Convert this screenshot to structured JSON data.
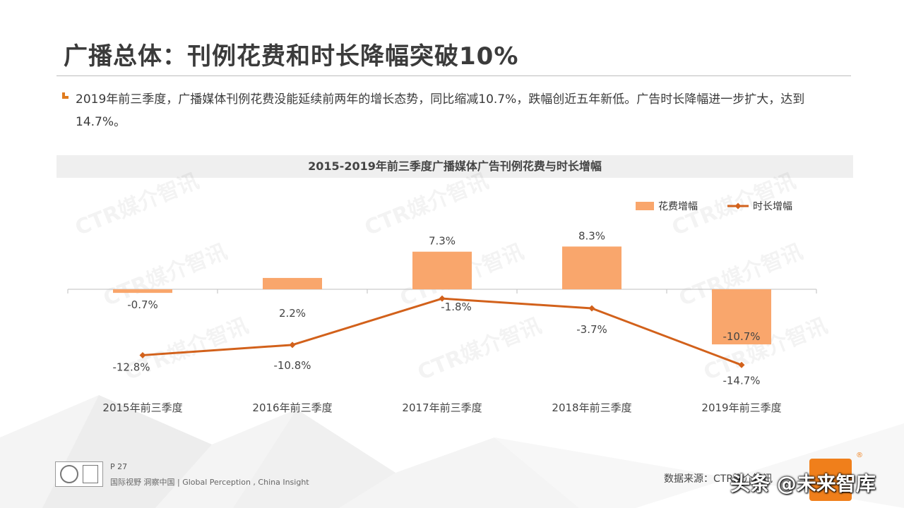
{
  "slide": {
    "title": "广播总体：刊例花费和时长降幅突破10%",
    "bullet": "2019年前三季度，广播媒体刊例花费没能延续前两年的增长态势，同比缩减10.7%，跌幅创近五年新低。广告时长降幅进一步扩大，达到14.7%。",
    "watermark": "CTR媒介智讯",
    "page_number": "P 27",
    "footer_tagline": "国际视野  洞察中国 | Global Perception , China Insight",
    "source": "数据来源：CTR媒介智讯",
    "brand_overlay": "头条 @未来智库",
    "registered_mark": "®"
  },
  "chart_data": {
    "type": "bar+line",
    "title": "2015-2019年前三季度广播媒体广告刊例花费与时长增幅",
    "categories": [
      "2015年前三季度",
      "2016年前三季度",
      "2017年前三季度",
      "2018年前三季度",
      "2019年前三季度"
    ],
    "series": [
      {
        "name": "花费增幅",
        "type": "bar",
        "color": "#f9a66c",
        "values": [
          -0.7,
          2.2,
          7.3,
          8.3,
          -10.7
        ],
        "labels": [
          "-0.7%",
          "2.2%",
          "7.3%",
          "8.3%",
          "-10.7%"
        ]
      },
      {
        "name": "时长增幅",
        "type": "line",
        "color": "#d2611b",
        "values": [
          -12.8,
          -10.8,
          -1.8,
          -3.7,
          -14.7
        ],
        "labels": [
          "-12.8%",
          "-10.8%",
          "-1.8%",
          "-3.7%",
          "-14.7%"
        ]
      }
    ],
    "legend_position": "top-right",
    "grid": false
  }
}
